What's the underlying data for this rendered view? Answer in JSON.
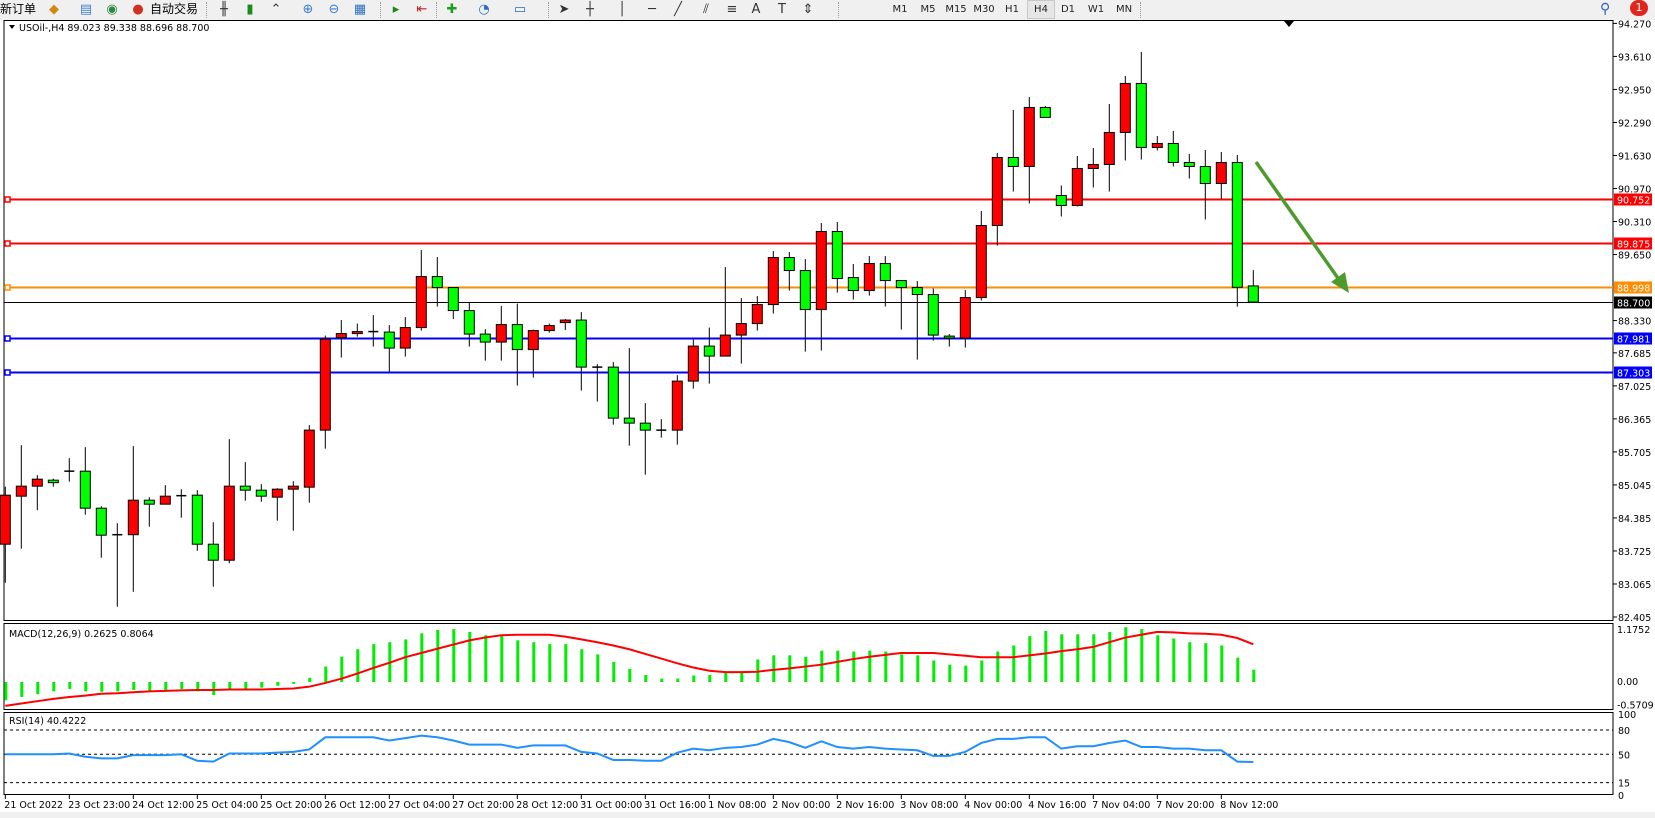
{
  "toolbar": {
    "new_order": "新订单",
    "auto_trading": "自动交易",
    "timeframes": [
      "M1",
      "M5",
      "M15",
      "M30",
      "H1",
      "H4",
      "D1",
      "W1",
      "MN"
    ],
    "active_timeframe": "H4",
    "notification_count": "1"
  },
  "chart": {
    "header": "USOil-,H4  89.023 89.338 88.696 88.700",
    "symbol": "USOil-",
    "timeframe": "H4",
    "ohlc_current": {
      "open": 89.023,
      "high": 89.338,
      "low": 88.696,
      "close": 88.7
    },
    "colors": {
      "bull": "#ff0000",
      "bear": "#00ff00",
      "macd_hist": "#00ee00",
      "signal": "#ff0000",
      "rsi": "#2090ff",
      "arrow": "#4f9a2e"
    }
  },
  "chart_data": [
    {
      "type": "candlestick",
      "title": "USOil-,H4  89.023 89.338 88.696 88.700",
      "ylim": [
        82.405,
        94.27
      ],
      "y_ticks": [
        "94.270",
        "93.610",
        "92.950",
        "92.290",
        "91.630",
        "90.970",
        "90.310",
        "89.650",
        "88.330",
        "87.685",
        "87.025",
        "86.365",
        "85.705",
        "85.045",
        "84.385",
        "83.725",
        "83.065",
        "82.405"
      ],
      "x_ticks": [
        {
          "index": 0,
          "label": "21 Oct 2022"
        },
        {
          "index": 4,
          "label": "23 Oct 23:00"
        },
        {
          "index": 8,
          "label": "24 Oct 12:00"
        },
        {
          "index": 12,
          "label": "25 Oct 04:00"
        },
        {
          "index": 16,
          "label": "25 Oct 20:00"
        },
        {
          "index": 20,
          "label": "26 Oct 12:00"
        },
        {
          "index": 24,
          "label": "27 Oct 04:00"
        },
        {
          "index": 28,
          "label": "27 Oct 20:00"
        },
        {
          "index": 32,
          "label": "28 Oct 12:00"
        },
        {
          "index": 36,
          "label": "31 Oct 00:00"
        },
        {
          "index": 40,
          "label": "31 Oct 16:00"
        },
        {
          "index": 44,
          "label": "1 Nov 08:00"
        },
        {
          "index": 48,
          "label": "2 Nov 00:00"
        },
        {
          "index": 52,
          "label": "2 Nov 16:00"
        },
        {
          "index": 56,
          "label": "3 Nov 08:00"
        },
        {
          "index": 60,
          "label": "4 Nov 00:00"
        },
        {
          "index": 64,
          "label": "4 Nov 16:00"
        },
        {
          "index": 68,
          "label": "7 Nov 04:00"
        },
        {
          "index": 72,
          "label": "7 Nov 20:00"
        },
        {
          "index": 76,
          "label": "8 Nov 12:00"
        }
      ],
      "horizontal_lines": [
        {
          "price": "90.752",
          "color": "#ff0000"
        },
        {
          "price": "89.875",
          "color": "#ff0000"
        },
        {
          "price": "88.998",
          "color": "#ff8c00"
        },
        {
          "price": "88.700",
          "color": "#000000"
        },
        {
          "price": "87.981",
          "color": "#0000ff"
        },
        {
          "price": "87.303",
          "color": "#0000ff"
        }
      ],
      "ohlc": [
        [
          83.86,
          85.01,
          83.09,
          84.84
        ],
        [
          84.82,
          85.84,
          83.77,
          85.02
        ],
        [
          85.02,
          85.24,
          84.54,
          85.16
        ],
        [
          85.14,
          85.17,
          85.01,
          85.09
        ],
        [
          85.32,
          85.58,
          85.11,
          85.32
        ],
        [
          85.32,
          85.8,
          84.45,
          84.58
        ],
        [
          84.58,
          84.62,
          83.59,
          84.04
        ],
        [
          84.05,
          84.28,
          82.61,
          84.05
        ],
        [
          84.05,
          85.82,
          82.91,
          84.74
        ],
        [
          84.74,
          84.8,
          84.21,
          84.66
        ],
        [
          84.66,
          85.04,
          84.66,
          84.82
        ],
        [
          84.83,
          84.96,
          84.39,
          84.83
        ],
        [
          84.84,
          84.94,
          83.73,
          83.86
        ],
        [
          83.86,
          84.3,
          83.01,
          83.54
        ],
        [
          83.54,
          85.96,
          83.48,
          85.02
        ],
        [
          85.02,
          85.5,
          84.73,
          84.94
        ],
        [
          84.94,
          85.06,
          84.71,
          84.82
        ],
        [
          84.8,
          84.98,
          84.33,
          84.96
        ],
        [
          84.96,
          85.12,
          84.13,
          85.02
        ],
        [
          85.0,
          86.24,
          84.69,
          86.14
        ],
        [
          86.14,
          88.03,
          85.77,
          87.96
        ],
        [
          87.99,
          88.34,
          87.59,
          88.07
        ],
        [
          88.07,
          88.27,
          88.01,
          88.11
        ],
        [
          88.11,
          88.44,
          87.81,
          88.11
        ],
        [
          88.1,
          88.24,
          87.3,
          87.78
        ],
        [
          87.78,
          88.4,
          87.61,
          88.19
        ],
        [
          88.19,
          89.74,
          88.13,
          89.21
        ],
        [
          89.21,
          89.6,
          88.61,
          88.99
        ],
        [
          88.99,
          88.99,
          88.36,
          88.53
        ],
        [
          88.53,
          88.7,
          87.81,
          88.06
        ],
        [
          88.06,
          88.16,
          87.53,
          87.9
        ],
        [
          87.9,
          88.62,
          87.53,
          88.25
        ],
        [
          88.25,
          88.67,
          87.03,
          87.75
        ],
        [
          87.75,
          88.15,
          87.19,
          88.13
        ],
        [
          88.13,
          88.27,
          88.09,
          88.23
        ],
        [
          88.29,
          88.36,
          88.14,
          88.34
        ],
        [
          88.34,
          88.5,
          86.93,
          87.4
        ],
        [
          87.4,
          87.46,
          86.71,
          87.4
        ],
        [
          87.4,
          87.5,
          86.25,
          86.38
        ],
        [
          86.38,
          87.78,
          85.83,
          86.28
        ],
        [
          86.28,
          86.68,
          85.25,
          86.14
        ],
        [
          86.14,
          86.36,
          85.99,
          86.14
        ],
        [
          86.14,
          87.24,
          85.85,
          87.12
        ],
        [
          87.12,
          87.95,
          86.97,
          87.82
        ],
        [
          87.82,
          88.19,
          87.07,
          87.62
        ],
        [
          87.62,
          89.4,
          87.62,
          88.04
        ],
        [
          88.04,
          88.78,
          87.47,
          88.27
        ],
        [
          88.27,
          88.82,
          88.13,
          88.65
        ],
        [
          88.65,
          89.72,
          88.47,
          89.59
        ],
        [
          89.59,
          89.7,
          88.93,
          89.33
        ],
        [
          89.33,
          89.56,
          87.71,
          88.55
        ],
        [
          88.55,
          90.28,
          87.73,
          90.11
        ],
        [
          90.11,
          90.3,
          88.89,
          89.17
        ],
        [
          89.19,
          89.46,
          88.75,
          88.93
        ],
        [
          88.93,
          89.62,
          88.83,
          89.47
        ],
        [
          89.47,
          89.62,
          88.61,
          89.13
        ],
        [
          89.13,
          89.13,
          88.15,
          88.99
        ],
        [
          88.99,
          89.12,
          87.55,
          88.85
        ],
        [
          88.85,
          88.97,
          87.93,
          88.04
        ],
        [
          88.02,
          88.06,
          87.81,
          87.98
        ],
        [
          87.98,
          88.94,
          87.79,
          88.79
        ],
        [
          88.79,
          90.52,
          88.73,
          90.23
        ],
        [
          90.23,
          91.68,
          89.83,
          91.59
        ],
        [
          91.59,
          92.54,
          90.91,
          91.41
        ],
        [
          91.41,
          92.8,
          90.67,
          92.59
        ],
        [
          92.59,
          92.62,
          92.39,
          92.39
        ],
        [
          90.83,
          91.03,
          90.41,
          90.63
        ],
        [
          90.63,
          91.62,
          90.61,
          91.37
        ],
        [
          91.37,
          91.78,
          90.99,
          91.45
        ],
        [
          91.45,
          92.66,
          90.91,
          92.09
        ],
        [
          92.09,
          93.22,
          91.53,
          93.07
        ],
        [
          93.07,
          93.7,
          91.55,
          91.79
        ],
        [
          91.79,
          92.02,
          91.73,
          91.87
        ],
        [
          91.87,
          92.12,
          91.41,
          91.49
        ],
        [
          91.49,
          91.66,
          91.17,
          91.41
        ],
        [
          91.41,
          91.74,
          90.35,
          91.07
        ],
        [
          91.07,
          91.7,
          90.76,
          91.49
        ],
        [
          91.49,
          91.64,
          88.61,
          88.995
        ],
        [
          89.023,
          89.338,
          88.696,
          88.7
        ]
      ],
      "annotation": "arrow pointing down-right toward 88.998 level"
    },
    {
      "type": "bar+line",
      "title": "MACD(12,26,9) 0.2625 0.8064",
      "ylim": [
        -0.5709,
        1.1752
      ],
      "y_ticks": [
        "1.1752",
        "0.00",
        "-0.5709"
      ],
      "histogram": [
        -0.39,
        -0.32,
        -0.26,
        -0.2,
        -0.15,
        -0.2,
        -0.21,
        -0.2,
        -0.17,
        -0.2,
        -0.17,
        -0.15,
        -0.2,
        -0.28,
        -0.17,
        -0.15,
        -0.12,
        -0.08,
        -0.04,
        0.09,
        0.33,
        0.54,
        0.7,
        0.81,
        0.85,
        0.91,
        1.04,
        1.11,
        1.13,
        1.07,
        1.0,
        1.0,
        0.89,
        0.85,
        0.81,
        0.81,
        0.7,
        0.59,
        0.43,
        0.28,
        0.15,
        0.07,
        0.07,
        0.14,
        0.15,
        0.22,
        0.22,
        0.48,
        0.57,
        0.57,
        0.54,
        0.67,
        0.67,
        0.65,
        0.67,
        0.65,
        0.59,
        0.57,
        0.46,
        0.37,
        0.35,
        0.46,
        0.65,
        0.78,
        0.98,
        1.09,
        1.02,
        1.02,
        1.02,
        1.07,
        1.17,
        1.13,
        1.0,
        0.93,
        0.85,
        0.83,
        0.78,
        0.52,
        0.2625
      ],
      "signal": [
        -0.51,
        -0.46,
        -0.41,
        -0.36,
        -0.32,
        -0.29,
        -0.25,
        -0.24,
        -0.22,
        -0.2,
        -0.19,
        -0.18,
        -0.17,
        -0.17,
        -0.16,
        -0.16,
        -0.16,
        -0.15,
        -0.14,
        -0.1,
        -0.02,
        0.07,
        0.18,
        0.3,
        0.41,
        0.53,
        0.62,
        0.71,
        0.8,
        0.89,
        0.95,
        1.0,
        1.01,
        1.01,
        1.01,
        0.97,
        0.91,
        0.85,
        0.78,
        0.7,
        0.6,
        0.5,
        0.4,
        0.31,
        0.24,
        0.21,
        0.21,
        0.22,
        0.26,
        0.29,
        0.33,
        0.37,
        0.43,
        0.49,
        0.54,
        0.58,
        0.62,
        0.62,
        0.62,
        0.59,
        0.56,
        0.53,
        0.53,
        0.53,
        0.57,
        0.61,
        0.66,
        0.7,
        0.75,
        0.85,
        0.95,
        1.01,
        1.07,
        1.06,
        1.04,
        1.03,
        1.01,
        0.94,
        0.8064
      ]
    },
    {
      "type": "line",
      "title": "RSI(14) 40.4222",
      "ylim": [
        0,
        100
      ],
      "y_ticks": [
        "100",
        "80",
        "50",
        "15",
        "0"
      ],
      "levels": [
        80,
        50,
        15
      ],
      "values": [
        50,
        50,
        50,
        50,
        51,
        47,
        45,
        45,
        49,
        49,
        49,
        50,
        42,
        41,
        51,
        51,
        51,
        52,
        53,
        56,
        71,
        71,
        71,
        71,
        67,
        70,
        73,
        71,
        67,
        62,
        62,
        62,
        58,
        61,
        61,
        61,
        53,
        51,
        43,
        43,
        42,
        42,
        52,
        57,
        55,
        58,
        59,
        62,
        69,
        65,
        58,
        66,
        59,
        57,
        59,
        57,
        56,
        55,
        48,
        48,
        53,
        64,
        69,
        69,
        71,
        71,
        57,
        60,
        60,
        64,
        67,
        59,
        59,
        57,
        57,
        55,
        55,
        41,
        40.4222
      ]
    }
  ]
}
